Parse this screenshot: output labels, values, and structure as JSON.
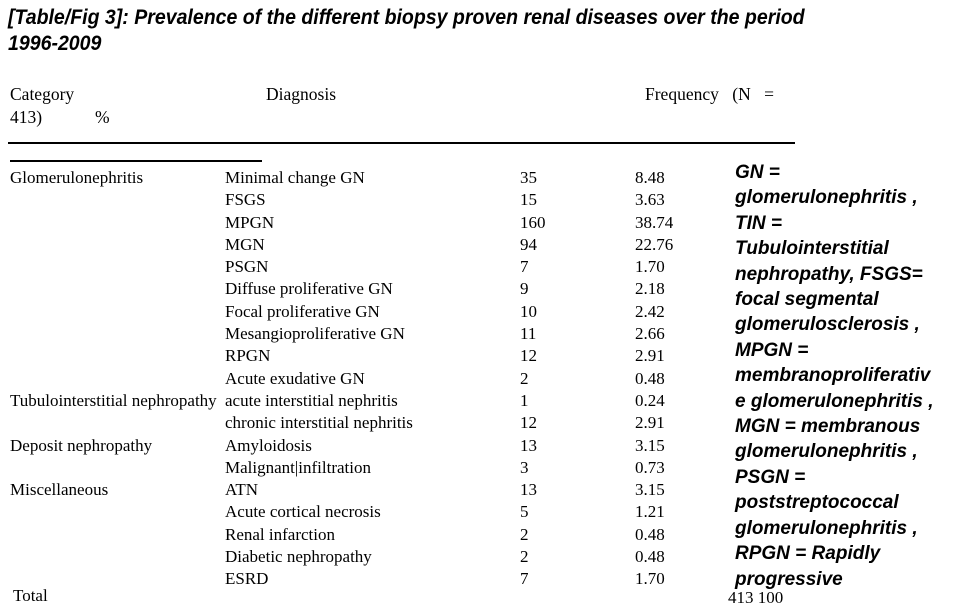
{
  "title_lines": [
    "[Table/Fig 3]: Prevalence of the different biopsy proven renal diseases over the period",
    "1996-2009"
  ],
  "table": {
    "header": {
      "col_category": "Category",
      "col_diagnosis": "Diagnosis",
      "col_frequency": "Frequency (N =",
      "col_frequency_wrap": "413)",
      "col_percent": "%"
    },
    "rows": [
      {
        "category": "Glomerulonephritis",
        "diagnosis": "Minimal change GN",
        "frequency": "35",
        "percent": "8.48"
      },
      {
        "category": "",
        "diagnosis": "FSGS",
        "frequency": "15",
        "percent": "3.63"
      },
      {
        "category": "",
        "diagnosis": "MPGN",
        "frequency": "160",
        "percent": "38.74"
      },
      {
        "category": "",
        "diagnosis": "MGN",
        "frequency": "94",
        "percent": "22.76"
      },
      {
        "category": "",
        "diagnosis": "PSGN",
        "frequency": "7",
        "percent": "1.70"
      },
      {
        "category": "",
        "diagnosis": "Diffuse proliferative GN",
        "frequency": "9",
        "percent": "2.18"
      },
      {
        "category": "",
        "diagnosis": "Focal proliferative GN",
        "frequency": "10",
        "percent": "2.42"
      },
      {
        "category": "",
        "diagnosis": "Mesangioproliferative GN",
        "frequency": "11",
        "percent": "2.66"
      },
      {
        "category": "",
        "diagnosis": "RPGN",
        "frequency": "12",
        "percent": "2.91"
      },
      {
        "category": "",
        "diagnosis": "Acute exudative GN",
        "frequency": "2",
        "percent": "0.48"
      },
      {
        "category": "Tubulointerstitial nephropathy",
        "diagnosis": "acute interstitial nephritis",
        "frequency": "1",
        "percent": "0.24"
      },
      {
        "category": "",
        "diagnosis": "chronic interstitial nephritis",
        "frequency": "12",
        "percent": "2.91"
      },
      {
        "category": "Deposit nephropathy",
        "diagnosis": "Amyloidosis",
        "frequency": "13",
        "percent": "3.15"
      },
      {
        "category": "",
        "diagnosis": "Malignant|infiltration",
        "frequency": "3",
        "percent": "0.73"
      },
      {
        "category": "Miscellaneous",
        "diagnosis": "ATN",
        "frequency": "13",
        "percent": "3.15"
      },
      {
        "category": "",
        "diagnosis": "Acute cortical necrosis",
        "frequency": "5",
        "percent": "1.21"
      },
      {
        "category": "",
        "diagnosis": "Renal infarction",
        "frequency": "2",
        "percent": "0.48"
      },
      {
        "category": "",
        "diagnosis": "Diabetic nephropathy",
        "frequency": "2",
        "percent": "0.48"
      },
      {
        "category": "",
        "diagnosis": "ESRD",
        "frequency": "7",
        "percent": "1.70"
      }
    ],
    "total": {
      "label": "Total",
      "value": "413 100"
    }
  },
  "legend_note": {
    "lines": [
      "GN =",
      "glomerulonephritis ,",
      "TIN =",
      "Tubulointerstitial",
      "nephropathy, FSGS=",
      "focal segmental",
      "glomerulosclerosis ,",
      "MPGN =",
      "membranoproliferativ",
      "e glomerulonephritis ,",
      "MGN = membranous",
      "glomerulonephritis ,",
      "PSGN =",
      "poststreptococcal",
      "glomerulonephritis ,",
      "RPGN = Rapidly",
      "progressive"
    ]
  },
  "colors": {
    "text": "#000000",
    "background": "#ffffff"
  }
}
